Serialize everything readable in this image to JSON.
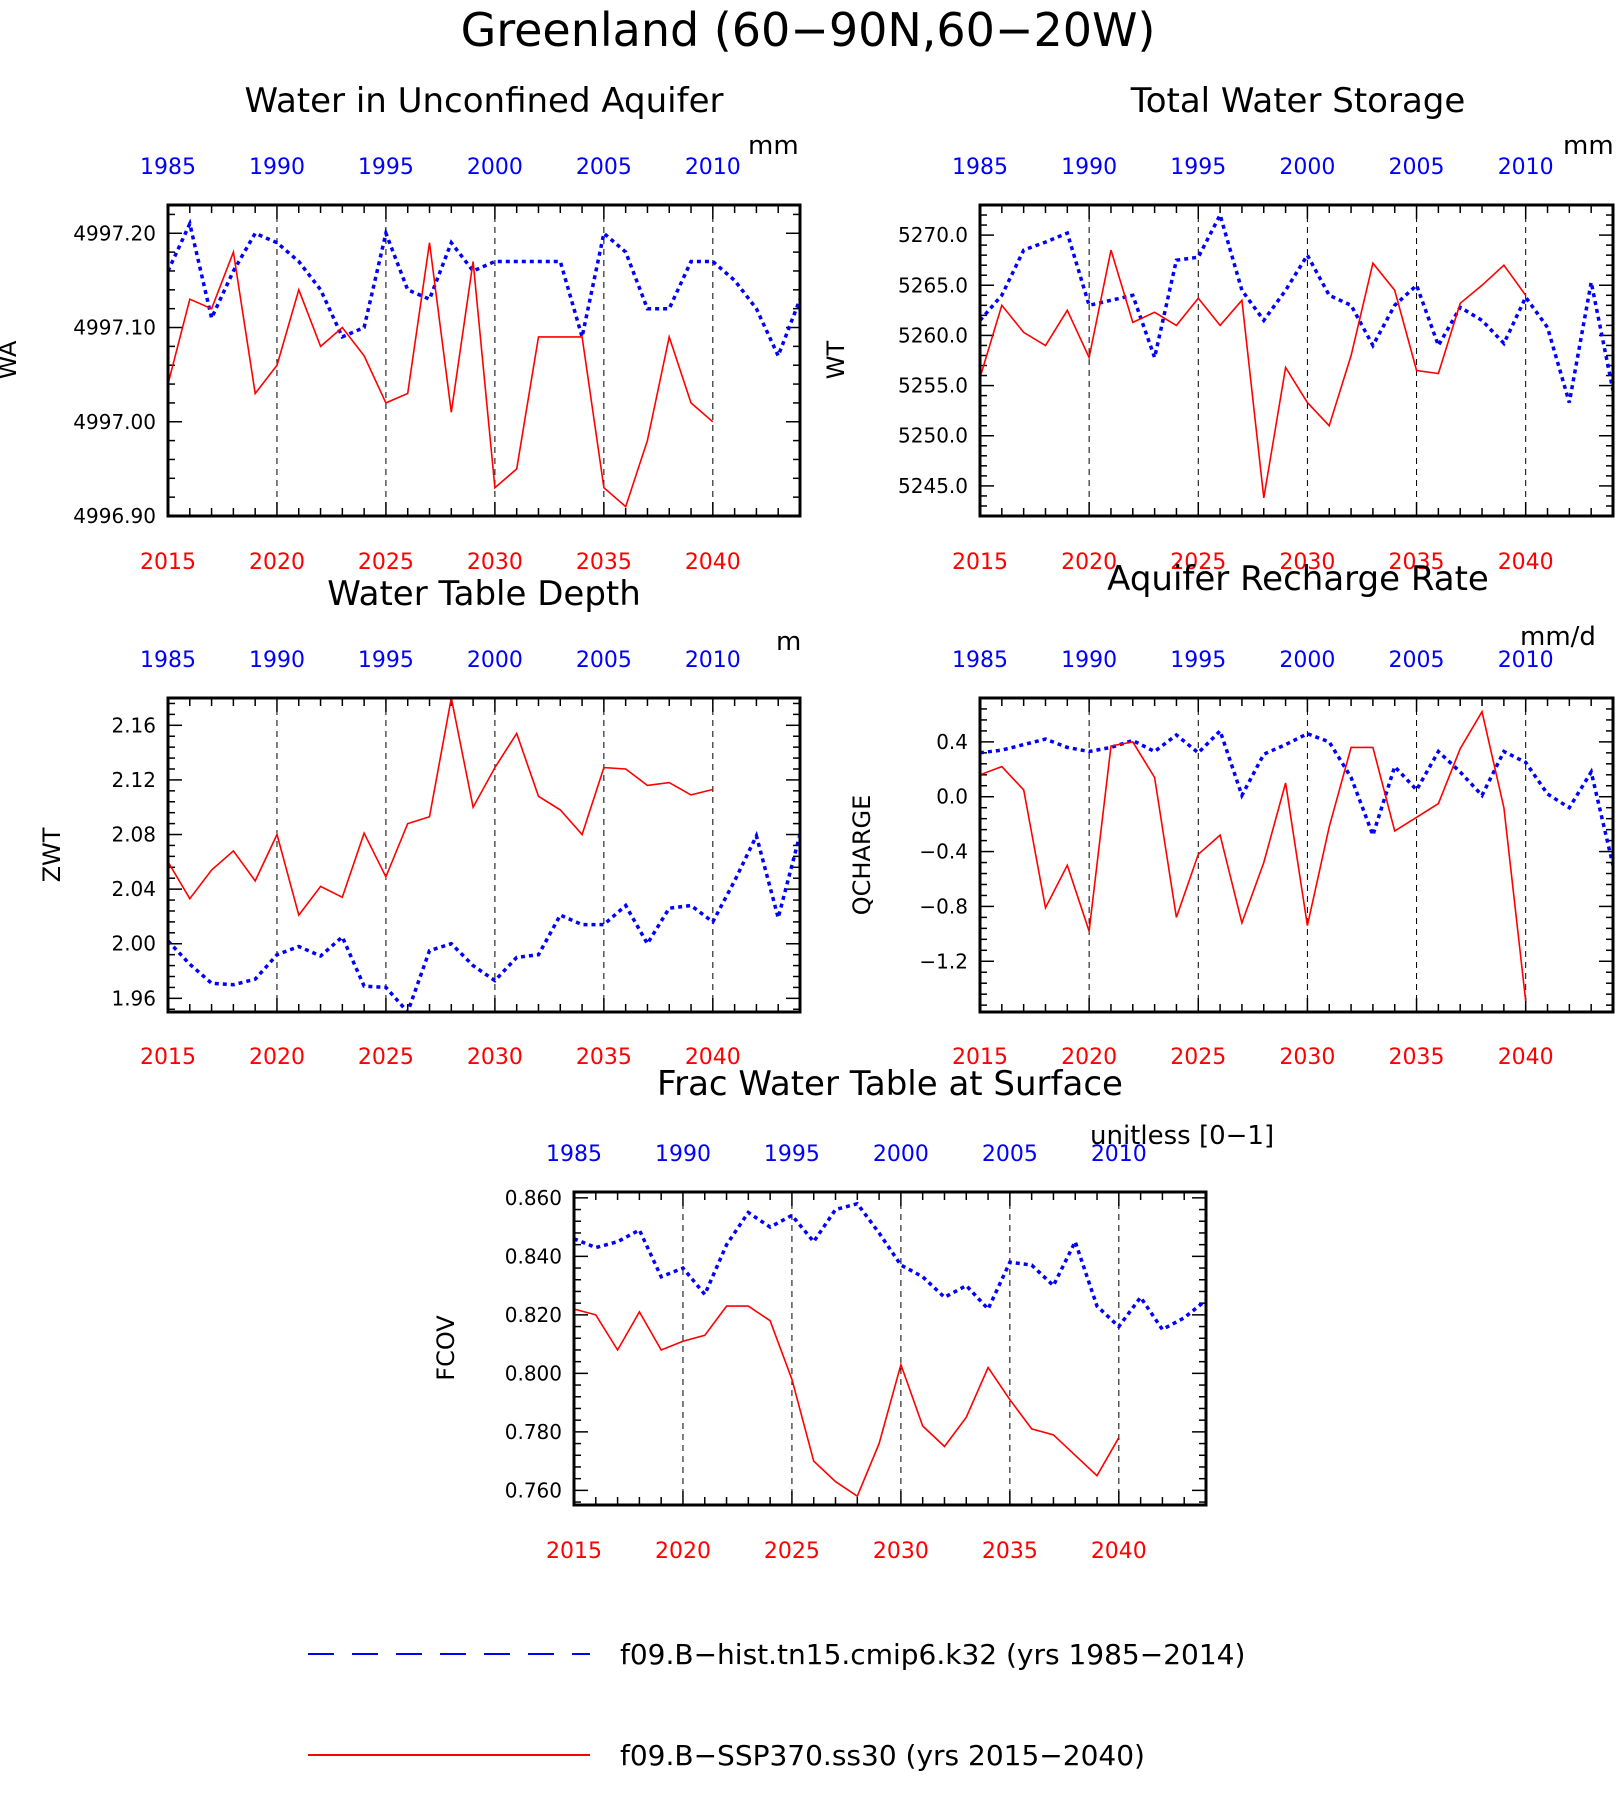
{
  "title": "Greenland (60−90N,60−20W)",
  "colors": {
    "hist": "#0000ff",
    "ssp": "#ff0000",
    "axis": "#000000"
  },
  "legend": [
    {
      "label": "f09.B−hist.tn15.cmip6.k32 (yrs 1985−2014)",
      "color": "#0000ff",
      "style": "dashed"
    },
    {
      "label": "f09.B−SSP370.ss30 (yrs 2015−2040)",
      "color": "#ff0000",
      "style": "solid"
    }
  ],
  "chart_data": [
    {
      "type": "line",
      "title": "Water in Unconfined Aquifer",
      "units": "mm",
      "ylabel": "WA",
      "ylim": [
        4996.9,
        4997.23
      ],
      "yticks": [
        4996.9,
        4997.0,
        4997.1,
        4997.2
      ],
      "ytick_labels": [
        "4996.90",
        "4997.00",
        "4997.10",
        "4997.20"
      ],
      "top_axis_ticks": [
        "1985",
        "1990",
        "1995",
        "2000",
        "2005",
        "2010"
      ],
      "bottom_axis_ticks": [
        "2015",
        "2020",
        "2025",
        "2030",
        "2035",
        "2040"
      ],
      "xlim": [
        2015,
        2044
      ],
      "series": [
        {
          "values": [
            4997.16,
            4997.21,
            4997.11,
            4997.16,
            4997.2,
            4997.19,
            4997.17,
            4997.14,
            4997.09,
            4997.1,
            4997.2,
            4997.14,
            4997.13,
            4997.19,
            4997.16,
            4997.17,
            4997.17,
            4997.17,
            4997.17,
            4997.09,
            4997.2,
            4997.18,
            4997.12,
            4997.12,
            4997.17,
            4997.17,
            4997.15,
            4997.12,
            4997.07,
            4997.13
          ]
        },
        {
          "values": [
            4997.04,
            4997.13,
            4997.12,
            4997.18,
            4997.03,
            4997.06,
            4997.14,
            4997.08,
            4997.1,
            4997.07,
            4997.02,
            4997.03,
            4997.19,
            4997.01,
            4997.17,
            4996.93,
            4996.95,
            4997.09,
            4997.09,
            4997.09,
            4996.93,
            4996.91,
            4996.98,
            4997.09,
            4997.02,
            4997.0
          ]
        }
      ]
    },
    {
      "type": "line",
      "title": "Total Water Storage",
      "units": "mm",
      "ylabel": "WT",
      "ylim": [
        5242,
        5273
      ],
      "yticks": [
        5245.0,
        5250.0,
        5255.0,
        5260.0,
        5265.0,
        5270.0
      ],
      "ytick_labels": [
        "5245.0",
        "5250.0",
        "5255.0",
        "5260.0",
        "5265.0",
        "5270.0"
      ],
      "top_axis_ticks": [
        "1985",
        "1990",
        "1995",
        "2000",
        "2005",
        "2010"
      ],
      "bottom_axis_ticks": [
        "2015",
        "2020",
        "2025",
        "2030",
        "2035",
        "2040"
      ],
      "xlim": [
        2015,
        2044
      ],
      "series": [
        {
          "values": [
            5261.5,
            5264.0,
            5268.5,
            5269.3,
            5270.2,
            5263.0,
            5263.5,
            5264.0,
            5257.8,
            5267.5,
            5267.8,
            5272.0,
            5264.5,
            5261.5,
            5264.5,
            5268.0,
            5264.0,
            5263.0,
            5259.0,
            5263.0,
            5265.0,
            5259.0,
            5262.8,
            5261.5,
            5259.2,
            5263.8,
            5260.8,
            5253.3,
            5265.3,
            5254.5
          ]
        },
        {
          "values": [
            5255.8,
            5263.0,
            5260.3,
            5259.0,
            5262.5,
            5257.8,
            5268.5,
            5261.3,
            5262.3,
            5261.0,
            5263.7,
            5261.0,
            5263.5,
            5243.8,
            5256.8,
            5253.3,
            5251.0,
            5258.0,
            5267.2,
            5264.5,
            5256.5,
            5256.2,
            5263.2,
            5265.0,
            5267.0,
            5264.0
          ]
        }
      ]
    },
    {
      "type": "line",
      "title": "Water Table Depth",
      "units": "m",
      "ylabel": "ZWT",
      "ylim": [
        1.95,
        2.18
      ],
      "yticks": [
        1.96,
        2.0,
        2.04,
        2.08,
        2.12,
        2.16
      ],
      "ytick_labels": [
        "1.96",
        "2.00",
        "2.04",
        "2.08",
        "2.12",
        "2.16"
      ],
      "top_axis_ticks": [
        "1985",
        "1990",
        "1995",
        "2000",
        "2005",
        "2010"
      ],
      "bottom_axis_ticks": [
        "2015",
        "2020",
        "2025",
        "2030",
        "2035",
        "2040"
      ],
      "xlim": [
        2015,
        2044
      ],
      "series": [
        {
          "values": [
            2.002,
            1.985,
            1.971,
            1.97,
            1.974,
            1.992,
            1.998,
            1.991,
            2.005,
            1.969,
            1.968,
            1.95,
            1.995,
            2.0,
            1.984,
            1.973,
            1.99,
            1.992,
            2.021,
            2.014,
            2.014,
            2.028,
            2.0,
            2.026,
            2.028,
            2.016,
            2.046,
            2.079,
            2.019,
            2.08
          ]
        },
        {
          "values": [
            2.06,
            2.033,
            2.054,
            2.068,
            2.046,
            2.08,
            2.021,
            2.042,
            2.034,
            2.081,
            2.049,
            2.088,
            2.093,
            2.18,
            2.1,
            2.129,
            2.154,
            2.108,
            2.098,
            2.08,
            2.129,
            2.128,
            2.116,
            2.118,
            2.109,
            2.113
          ]
        }
      ]
    },
    {
      "type": "line",
      "title": "Aquifer Recharge Rate",
      "units": "mm/d",
      "ylabel": "QCHARGE",
      "ylim": [
        -1.57,
        0.72
      ],
      "yticks": [
        -1.2,
        -0.8,
        -0.4,
        0.0,
        0.4
      ],
      "ytick_labels": [
        "−1.2",
        "−0.8",
        "−0.4",
        "0.0",
        "0.4"
      ],
      "top_axis_ticks": [
        "1985",
        "1990",
        "1995",
        "2000",
        "2005",
        "2010"
      ],
      "bottom_axis_ticks": [
        "2015",
        "2020",
        "2025",
        "2030",
        "2035",
        "2040"
      ],
      "xlim": [
        2015,
        2044
      ],
      "series": [
        {
          "values": [
            0.32,
            0.34,
            0.38,
            0.42,
            0.36,
            0.33,
            0.36,
            0.41,
            0.33,
            0.45,
            0.32,
            0.48,
            0.01,
            0.31,
            0.38,
            0.46,
            0.4,
            0.14,
            -0.28,
            0.22,
            0.05,
            0.33,
            0.18,
            0.01,
            0.33,
            0.25,
            0.02,
            -0.08,
            0.18,
            -0.5
          ]
        },
        {
          "values": [
            0.16,
            0.22,
            0.05,
            -0.81,
            -0.5,
            -0.98,
            0.37,
            0.4,
            0.14,
            -0.88,
            -0.42,
            -0.28,
            -0.92,
            -0.48,
            0.1,
            -0.94,
            -0.22,
            0.36,
            0.36,
            -0.25,
            -0.15,
            -0.05,
            0.35,
            0.62,
            -0.08,
            -1.49
          ]
        }
      ]
    },
    {
      "type": "line",
      "title": "Frac Water Table at Surface",
      "units": "unitless [0−1]",
      "ylabel": "FCOV",
      "ylim": [
        0.755,
        0.862
      ],
      "yticks": [
        0.76,
        0.78,
        0.8,
        0.82,
        0.84,
        0.86
      ],
      "ytick_labels": [
        "0.760",
        "0.780",
        "0.800",
        "0.820",
        "0.840",
        "0.860"
      ],
      "top_axis_ticks": [
        "1985",
        "1990",
        "1995",
        "2000",
        "2005",
        "2010"
      ],
      "bottom_axis_ticks": [
        "2015",
        "2020",
        "2025",
        "2030",
        "2035",
        "2040"
      ],
      "xlim": [
        2015,
        2044
      ],
      "series": [
        {
          "values": [
            0.846,
            0.843,
            0.845,
            0.849,
            0.833,
            0.836,
            0.827,
            0.844,
            0.855,
            0.85,
            0.854,
            0.845,
            0.856,
            0.858,
            0.848,
            0.837,
            0.833,
            0.826,
            0.83,
            0.822,
            0.838,
            0.837,
            0.83,
            0.845,
            0.823,
            0.816,
            0.826,
            0.815,
            0.819,
            0.825
          ]
        },
        {
          "values": [
            0.822,
            0.82,
            0.808,
            0.821,
            0.808,
            0.811,
            0.813,
            0.823,
            0.823,
            0.818,
            0.798,
            0.77,
            0.763,
            0.758,
            0.776,
            0.803,
            0.782,
            0.775,
            0.785,
            0.802,
            0.791,
            0.781,
            0.779,
            0.772,
            0.765,
            0.778
          ]
        }
      ]
    }
  ]
}
